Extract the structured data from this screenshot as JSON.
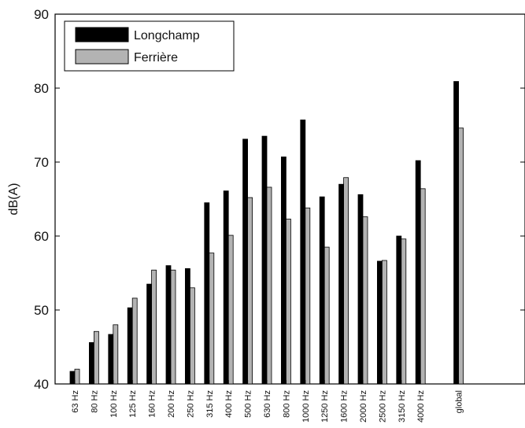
{
  "chart_data": {
    "type": "bar",
    "title": "",
    "xlabel": "",
    "ylabel": "dB(A)",
    "ylim": [
      40,
      90
    ],
    "yticks": [
      40,
      50,
      60,
      70,
      80,
      90
    ],
    "grid": false,
    "legend_position": "top-left",
    "categories": [
      "63 Hz",
      "80 Hz",
      "100 Hz",
      "125 Hz",
      "160 Hz",
      "200 Hz",
      "250 Hz",
      "315 Hz",
      "400 Hz",
      "500 Hz",
      "630 Hz",
      "800 Hz",
      "1000 Hz",
      "1250 Hz",
      "1600 Hz",
      "2000 Hz",
      "2500 Hz",
      "3150 Hz",
      "4000 Hz",
      "global"
    ],
    "series": [
      {
        "name": "Longchamp",
        "color": "#000000",
        "values": [
          41.7,
          45.6,
          46.7,
          50.3,
          53.5,
          56.0,
          55.6,
          64.5,
          66.1,
          73.1,
          73.5,
          70.7,
          75.7,
          65.3,
          67.0,
          65.6,
          56.6,
          60.0,
          70.2,
          80.9
        ]
      },
      {
        "name": "Ferrière",
        "color": "#b3b3b3",
        "values": [
          42.0,
          47.1,
          48.0,
          51.6,
          55.4,
          55.4,
          53.0,
          57.7,
          60.1,
          65.2,
          66.6,
          62.3,
          63.8,
          58.5,
          67.9,
          62.6,
          56.7,
          59.6,
          66.4,
          74.6
        ]
      }
    ]
  }
}
